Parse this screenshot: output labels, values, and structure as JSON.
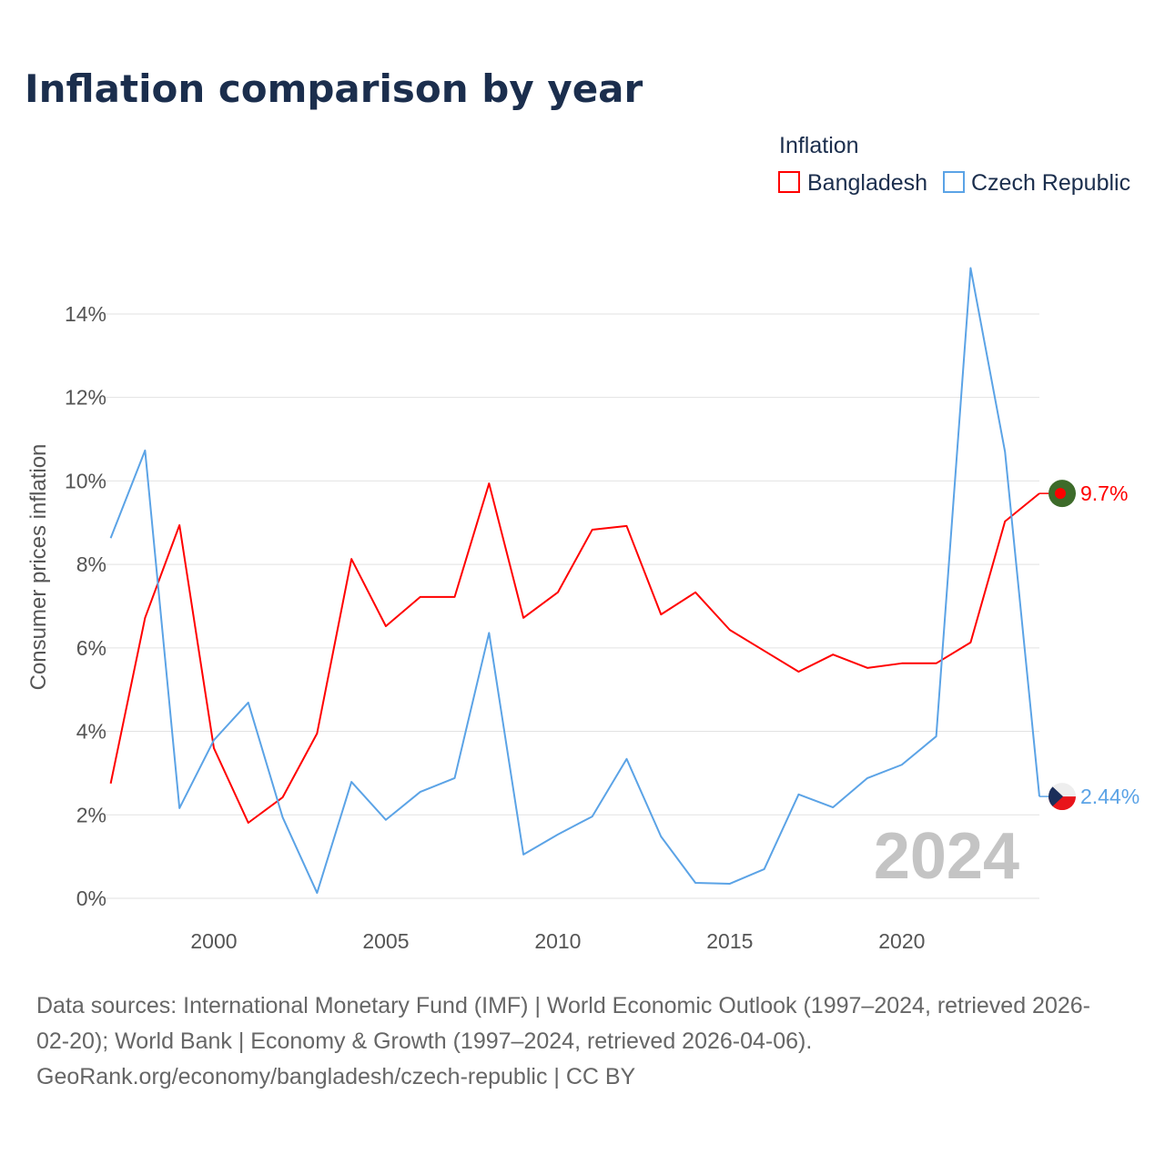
{
  "chart_data": {
    "type": "line",
    "title": "Inflation comparison by year",
    "legend_title": "Inflation",
    "legend_placement": "top-right",
    "ylabel": "Consumer prices inflation",
    "xlabel": "",
    "xlim": [
      1997,
      2024
    ],
    "ylim": [
      0,
      15.5
    ],
    "x_ticks": [
      2000,
      2005,
      2010,
      2015,
      2020
    ],
    "y_ticks": [
      0,
      2,
      4,
      6,
      8,
      10,
      12,
      14
    ],
    "y_tick_labels": [
      "0%",
      "2%",
      "4%",
      "6%",
      "8%",
      "10%",
      "12%",
      "14%"
    ],
    "grid": true,
    "x": [
      1997,
      1998,
      1999,
      2000,
      2001,
      2002,
      2003,
      2004,
      2005,
      2006,
      2007,
      2008,
      2009,
      2010,
      2011,
      2012,
      2013,
      2014,
      2015,
      2016,
      2017,
      2018,
      2019,
      2020,
      2021,
      2022,
      2023,
      2024
    ],
    "series": [
      {
        "name": "Bangladesh",
        "color": "#ff0000",
        "end_label": "9.7%",
        "values": [
          2.75,
          6.72,
          8.94,
          3.6,
          1.81,
          2.42,
          3.95,
          8.13,
          6.52,
          7.22,
          7.22,
          9.94,
          6.72,
          7.33,
          8.83,
          8.92,
          6.8,
          7.33,
          6.43,
          5.93,
          5.43,
          5.84,
          5.52,
          5.63,
          5.63,
          6.13,
          9.03,
          9.7
        ]
      },
      {
        "name": "Czech Republic",
        "color": "#5ba3e6",
        "end_label": "2.44%",
        "values": [
          8.63,
          10.73,
          2.16,
          3.79,
          4.69,
          1.94,
          0.13,
          2.79,
          1.88,
          2.55,
          2.88,
          6.36,
          1.05,
          1.53,
          1.96,
          3.34,
          1.48,
          0.37,
          0.35,
          0.7,
          2.49,
          2.18,
          2.88,
          3.2,
          3.88,
          15.1,
          10.7,
          2.44
        ]
      }
    ],
    "annotation_year": "2024"
  },
  "footer": {
    "line1": "Data sources: International Monetary Fund (IMF) | World Economic Outlook (1997–2024, retrieved 2026-",
    "line2": "02-20); World Bank | Economy & Growth (1997–2024, retrieved 2026-04-06).",
    "line3": "GeoRank.org/economy/bangladesh/czech-republic | CC BY"
  }
}
